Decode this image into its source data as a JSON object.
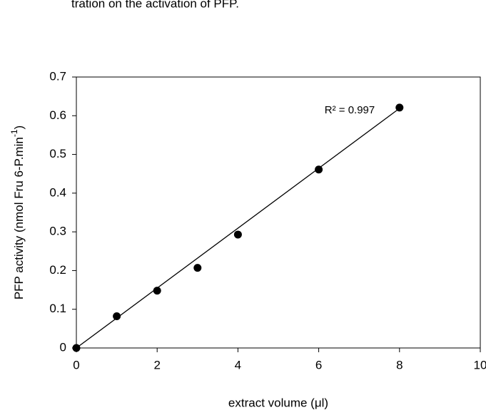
{
  "caption": "tration on the activation of PFP.",
  "chart_data": {
    "type": "scatter",
    "x_label": "extract volume (μl)",
    "y_label": [
      "PFP activity (nmol Fru 6-P.min",
      "-1",
      ")"
    ],
    "annotation": "R² = 0.997",
    "x": [
      0,
      1,
      2,
      3,
      4,
      6,
      8
    ],
    "series": [
      {
        "color": "#000000",
        "values": [
          0,
          0.082,
          0.148,
          0.207,
          0.293,
          0.461,
          0.621
        ]
      }
    ],
    "trendline": {
      "x": [
        0,
        8
      ],
      "values": [
        0,
        0.619
      ],
      "color": "#000000"
    },
    "xlim": [
      0,
      10
    ],
    "xticks": [
      0,
      2,
      4,
      6,
      8,
      10
    ],
    "ylim": [
      0,
      0.7
    ],
    "yticks": [
      0,
      0.1,
      0.2,
      0.3,
      0.4,
      0.5,
      0.6,
      0.7
    ]
  }
}
